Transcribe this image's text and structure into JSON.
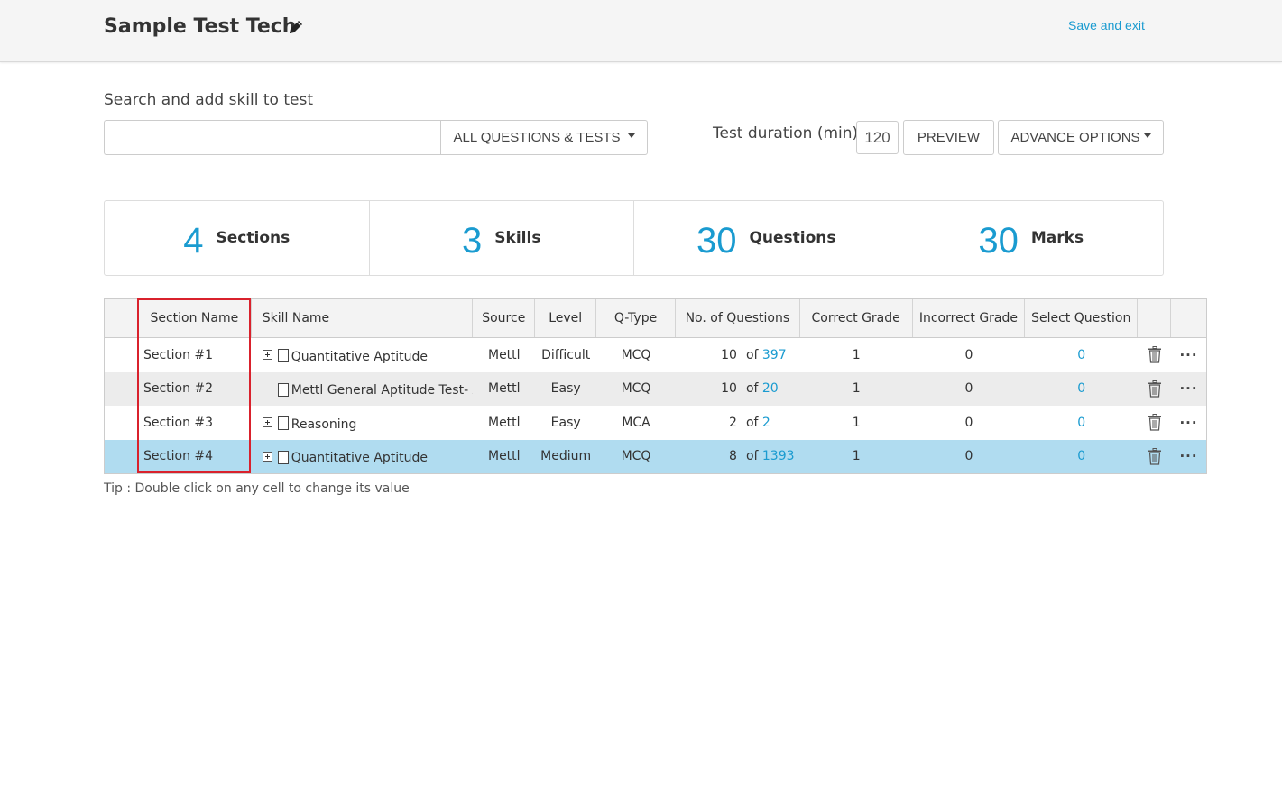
{
  "header": {
    "title": "Sample Test Tech",
    "save_exit": "Save and exit"
  },
  "search": {
    "label": "Search and add skill to test",
    "value": "",
    "placeholder": "",
    "filter": "ALL QUESTIONS & TESTS"
  },
  "duration": {
    "label": "Test duration (min)",
    "value": "120"
  },
  "buttons": {
    "preview": "PREVIEW",
    "advance": "ADVANCE OPTIONS"
  },
  "stats": [
    {
      "value": "4",
      "label": "Sections"
    },
    {
      "value": "3",
      "label": "Skills"
    },
    {
      "value": "30",
      "label": "Questions"
    },
    {
      "value": "30",
      "label": "Marks"
    }
  ],
  "table": {
    "columns": [
      "Section Name",
      "Skill Name",
      "Source",
      "Level",
      "Q-Type",
      "No. of  Questions",
      "Correct Grade",
      "Incorrect Grade",
      "Select Question"
    ],
    "rows": [
      {
        "section": "Section #1",
        "skill": "Quantitative Aptitude",
        "source": "Mettl",
        "level": "Difficult",
        "qtype": "MCQ",
        "num": "10",
        "of": "of",
        "total": "397",
        "correct": "1",
        "incorrect": "0",
        "select": "0"
      },
      {
        "section": "Section #2",
        "skill": "Mettl General Aptitude Test- A",
        "source": "Mettl",
        "level": "Easy",
        "qtype": "MCQ",
        "num": "10",
        "of": "of",
        "total": "20",
        "correct": "1",
        "incorrect": "0",
        "select": "0"
      },
      {
        "section": "Section #3",
        "skill": "Reasoning",
        "source": "Mettl",
        "level": "Easy",
        "qtype": "MCA",
        "num": "2",
        "of": "of",
        "total": "2",
        "correct": "1",
        "incorrect": "0",
        "select": "0"
      },
      {
        "section": "Section #4",
        "skill": "Quantitative Aptitude",
        "source": "Mettl",
        "level": "Medium",
        "qtype": "MCQ",
        "num": "8",
        "of": "of",
        "total": "1393",
        "correct": "1",
        "incorrect": "0",
        "select": "0"
      }
    ],
    "more": "···"
  },
  "tip": "Tip : Double click on any cell to change its value",
  "colors": {
    "accent": "#1a9bd0",
    "selected_row": "#b0dcf0",
    "highlight_border": "#d9212c"
  },
  "icons": {
    "edit": "pencil-icon",
    "delete": "trash-icon",
    "more": "more-horizontal-icon",
    "expand": "plus-square-icon",
    "skill": "document-icon"
  }
}
